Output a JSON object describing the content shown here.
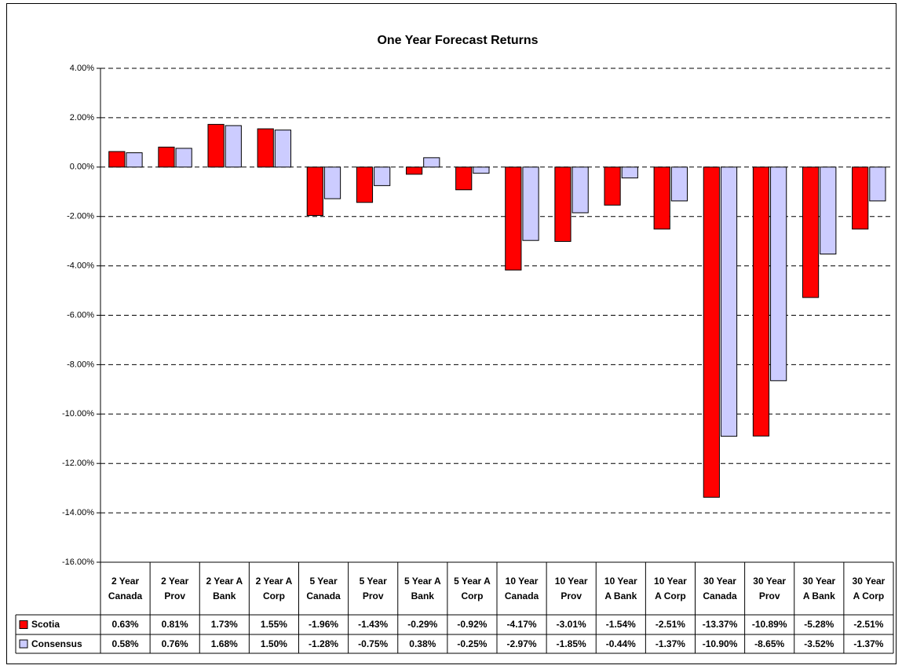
{
  "chart_data": {
    "type": "bar",
    "title": "One Year Forecast Returns",
    "categories": [
      "2 Year Canada",
      "2 Year Prov",
      "2 Year A Bank",
      "2 Year A Corp",
      "5 Year Canada",
      "5 Year Prov",
      "5 Year A Bank",
      "5 Year A Corp",
      "10 Year Canada",
      "10 Year Prov",
      "10 Year A Bank",
      "10 Year A Corp",
      "30 Year Canada",
      "30 Year Prov",
      "30 Year A Bank",
      "30 Year A Corp"
    ],
    "series": [
      {
        "name": "Scotia",
        "color": "#ff0000",
        "values": [
          0.63,
          0.81,
          1.73,
          1.55,
          -1.96,
          -1.43,
          -0.29,
          -0.92,
          -4.17,
          -3.01,
          -1.54,
          -2.51,
          -13.37,
          -10.89,
          -5.28,
          -2.51
        ],
        "value_labels": [
          "0.63%",
          "0.81%",
          "1.73%",
          "1.55%",
          "-1.96%",
          "-1.43%",
          "-0.29%",
          "-0.92%",
          "-4.17%",
          "-3.01%",
          "-1.54%",
          "-2.51%",
          "-13.37%",
          "-10.89%",
          "-5.28%",
          "-2.51%"
        ]
      },
      {
        "name": "Consensus",
        "color": "#ccccff",
        "values": [
          0.58,
          0.76,
          1.68,
          1.5,
          -1.28,
          -0.75,
          0.38,
          -0.25,
          -2.97,
          -1.85,
          -0.44,
          -1.37,
          -10.9,
          -8.65,
          -3.52,
          -1.37
        ],
        "value_labels": [
          "0.58%",
          "0.76%",
          "1.68%",
          "1.50%",
          "-1.28%",
          "-0.75%",
          "0.38%",
          "-0.25%",
          "-2.97%",
          "-1.85%",
          "-0.44%",
          "-1.37%",
          "-10.90%",
          "-8.65%",
          "-3.52%",
          "-1.37%"
        ]
      }
    ],
    "ylim": [
      -16,
      4
    ],
    "yticks": [
      {
        "value": 4,
        "label": "4.00%"
      },
      {
        "value": 2,
        "label": "2.00%"
      },
      {
        "value": 0,
        "label": "0.00%"
      },
      {
        "value": -2,
        "label": "-2.00%"
      },
      {
        "value": -4,
        "label": "-4.00%"
      },
      {
        "value": -6,
        "label": "-6.00%"
      },
      {
        "value": -8,
        "label": "-8.00%"
      },
      {
        "value": -10,
        "label": "-10.00%"
      },
      {
        "value": -12,
        "label": "-12.00%"
      },
      {
        "value": -14,
        "label": "-14.00%"
      },
      {
        "value": -16,
        "label": "-16.00%"
      }
    ],
    "grid": true,
    "legend": "data-table"
  }
}
